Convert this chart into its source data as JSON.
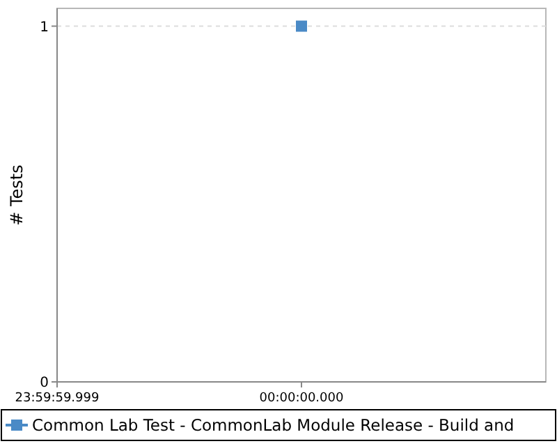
{
  "chart_data": {
    "type": "scatter",
    "ylabel": "# Tests",
    "categories": [
      "23:59:59.999",
      "00:00:00.000",
      null
    ],
    "series": [
      {
        "name": "Common Lab Test - CommonLab Module Release - Build and",
        "color": "#4a8ac6",
        "values": [
          null,
          1,
          null
        ]
      }
    ],
    "ylim": [
      0,
      1.05
    ],
    "yticks": [
      0,
      1
    ],
    "grid": "y",
    "legend": "bottom",
    "marker": "square"
  }
}
